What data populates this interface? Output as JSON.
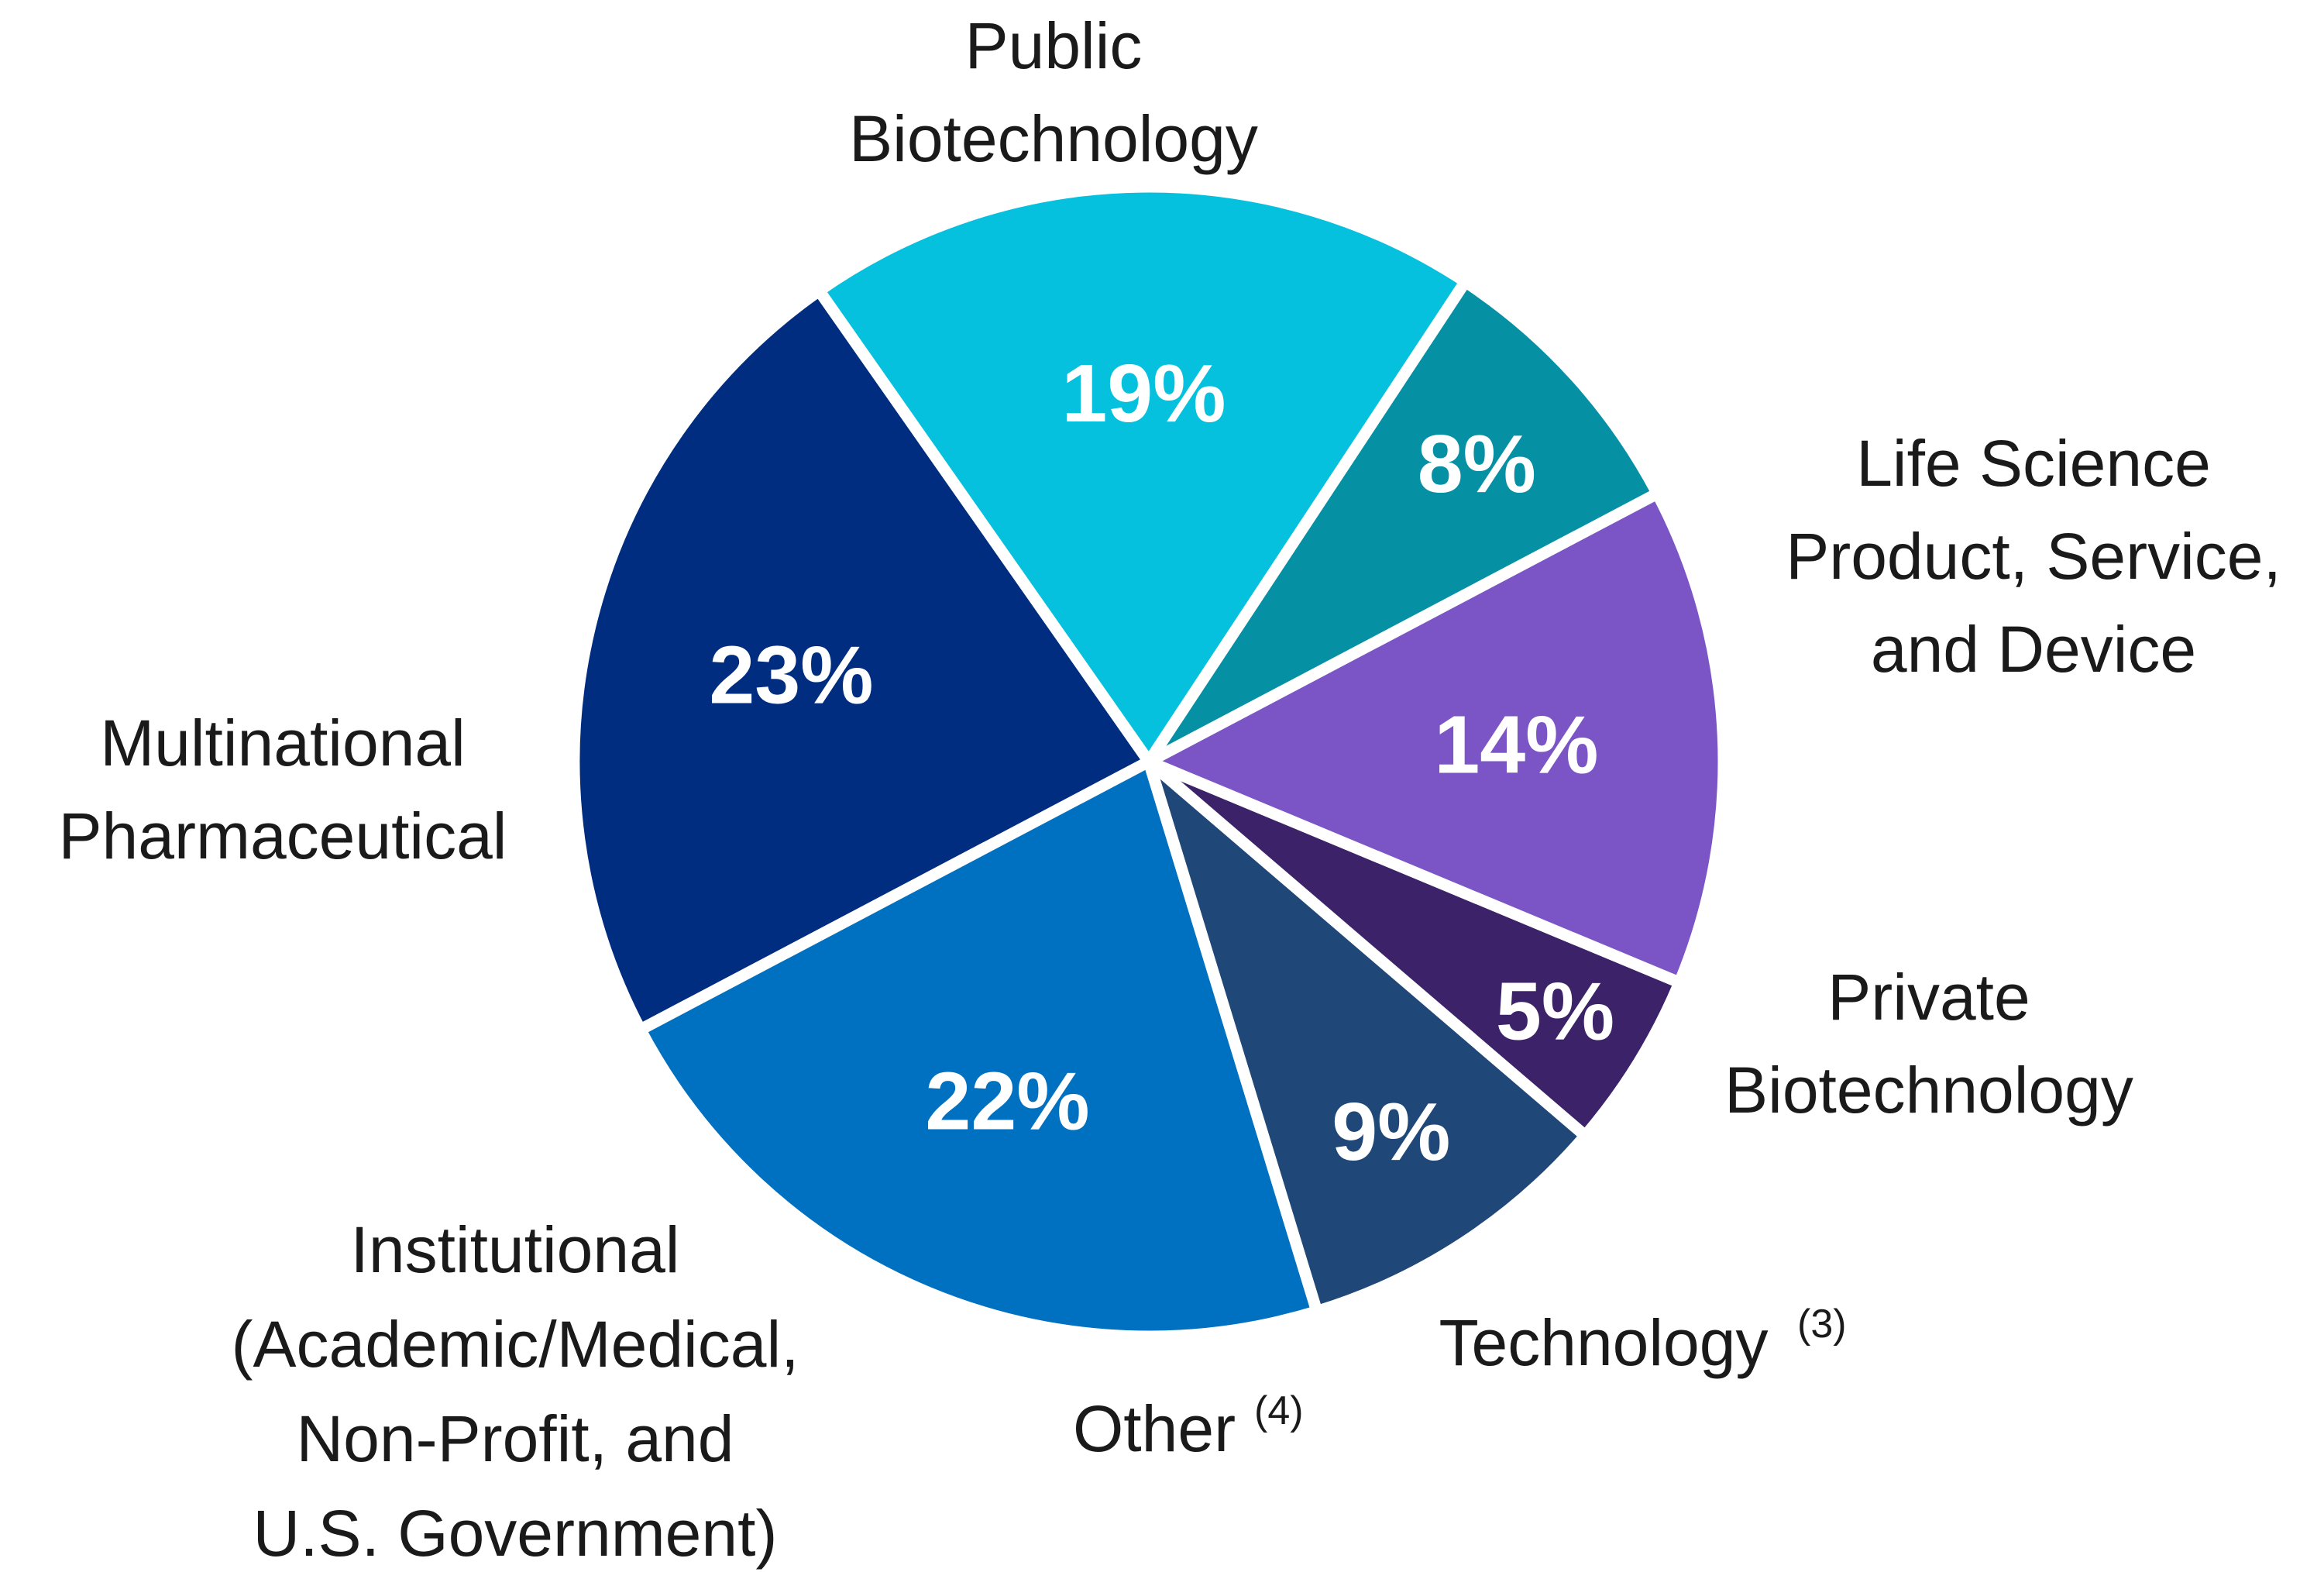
{
  "chart_data": {
    "type": "pie",
    "start_angle_deg": 125,
    "direction": "counterclockwise",
    "slices": [
      {
        "key": "public-biotechnology",
        "label_lines": [
          "Public",
          "Biotechnology"
        ],
        "footnote": "",
        "value": 23,
        "value_label": "23%",
        "color": "#002D80"
      },
      {
        "key": "multinational-pharmaceutical",
        "label_lines": [
          "Multinational",
          "Pharmaceutical"
        ],
        "footnote": "",
        "value": 22,
        "value_label": "22%",
        "color": "#0070C0"
      },
      {
        "key": "institutional",
        "label_lines": [
          "Institutional",
          "(Academic/Medical,",
          "Non-Profit, and",
          "U.S. Government)"
        ],
        "footnote": "",
        "value": 9,
        "value_label": "9%",
        "color": "#1F4778"
      },
      {
        "key": "other",
        "label_lines": [
          "Other"
        ],
        "footnote": "(4)",
        "value": 5,
        "value_label": "5%",
        "color": "#3C2269"
      },
      {
        "key": "technology",
        "label_lines": [
          "Technology"
        ],
        "footnote": "(3)",
        "value": 14,
        "value_label": "14%",
        "color": "#7B55C6"
      },
      {
        "key": "private-biotechnology",
        "label_lines": [
          "Private",
          "Biotechnology"
        ],
        "footnote": "",
        "value": 8,
        "value_label": "8%",
        "color": "#0590A4"
      },
      {
        "key": "life-science-product-service-device",
        "label_lines": [
          "Life Science",
          "Product, Service,",
          "and Device"
        ],
        "footnote": "",
        "value": 19,
        "value_label": "19%",
        "color": "#06C1DE"
      }
    ]
  }
}
